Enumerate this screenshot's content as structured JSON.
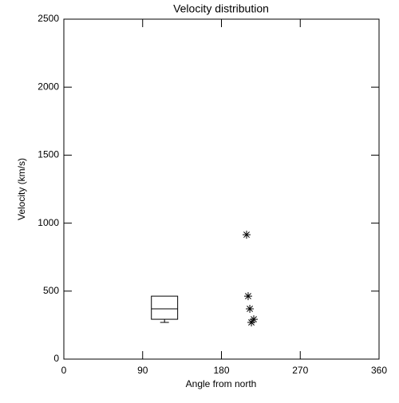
{
  "chart_data": {
    "type": "box",
    "title": "Velocity distribution",
    "x_label": "Angle from north",
    "y_label": "Velocity (km/s)",
    "xlim": [
      0,
      360
    ],
    "xticks": [
      0,
      90,
      180,
      270,
      360
    ],
    "ylim": [
      0,
      2500
    ],
    "yticks": [
      0,
      500,
      1000,
      1500,
      2000,
      2500
    ],
    "color": "#000000",
    "box": {
      "x_range": [
        100,
        130
      ],
      "whislo": 270,
      "q1": 293,
      "med": 370,
      "q3": 463
    },
    "points": {
      "x": [
        208.7,
        210.5,
        212.4,
        216.9,
        214.2
      ],
      "y": [
        915,
        463,
        370,
        293,
        270
      ]
    }
  }
}
